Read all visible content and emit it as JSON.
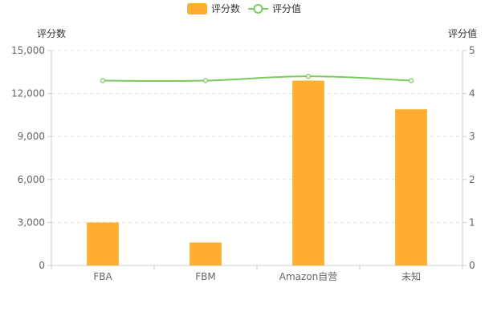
{
  "chart_data": {
    "type": "bar",
    "categories": [
      "FBA",
      "FBM",
      "Amazon自营",
      "未知"
    ],
    "series": [
      {
        "name": "评分数",
        "type": "bar",
        "axis": "left",
        "color": "#FFAE2F",
        "values": [
          3000,
          1600,
          12900,
          10900
        ]
      },
      {
        "name": "评分值",
        "type": "line",
        "axis": "right",
        "color": "#7ACB5E",
        "values": [
          4.3,
          4.3,
          4.4,
          4.3
        ]
      }
    ],
    "y_left": {
      "label": "评分数",
      "ylim": [
        0,
        15000
      ],
      "ticks": [
        "0",
        "3,000",
        "6,000",
        "9,000",
        "12,000",
        "15,000"
      ],
      "tick_values": [
        0,
        3000,
        6000,
        9000,
        12000,
        15000
      ]
    },
    "y_right": {
      "label": "评分值",
      "ylim": [
        0,
        5
      ],
      "ticks": [
        "0",
        "1",
        "2",
        "3",
        "4",
        "5"
      ],
      "tick_values": [
        0,
        1,
        2,
        3,
        4,
        5
      ]
    },
    "grid": true,
    "legend_position": "top-center"
  }
}
